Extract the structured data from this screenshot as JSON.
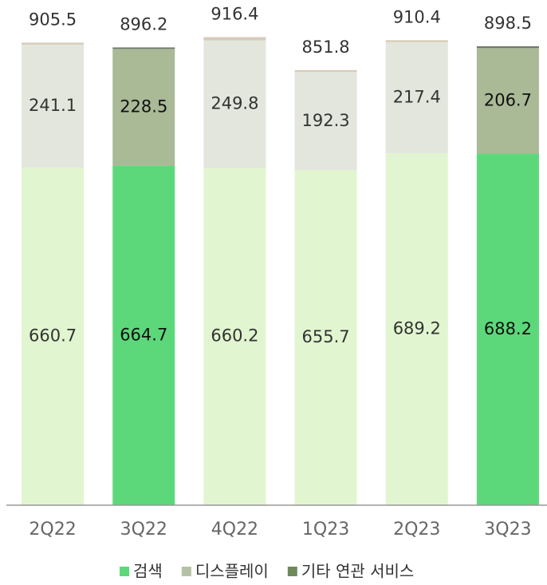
{
  "chart_data": {
    "type": "stacked_bar",
    "categories": [
      "2Q22",
      "3Q22",
      "4Q22",
      "1Q23",
      "2Q23",
      "3Q23"
    ],
    "totals": [
      905.5,
      896.2,
      916.4,
      851.8,
      910.4,
      898.5
    ],
    "series": [
      {
        "name": "검색",
        "color": "#5cd87a",
        "values": [
          660.7,
          664.7,
          660.2,
          655.7,
          689.2,
          688.2
        ],
        "colors": [
          "#e1f6d0",
          "#5cd87a",
          "#e1f6d0",
          "#e1f6d0",
          "#e1f6d0",
          "#5cd87a"
        ]
      },
      {
        "name": "디스플레이",
        "color": "#b5c1a5",
        "values": [
          241.1,
          228.5,
          249.8,
          192.3,
          217.4,
          206.7
        ],
        "colors": [
          "#e3e6dc",
          "#aab996",
          "#e3e6dc",
          "#e3e6dc",
          "#e3e6dc",
          "#aab996"
        ]
      },
      {
        "name": "기타 연관 서비스",
        "color": "#6f8a5a",
        "values": [
          3.7,
          3.0,
          6.4,
          3.8,
          3.8,
          3.6
        ],
        "colors": [
          "#d6cbb8",
          "#6e7a6a",
          "#d6cbb8",
          "#d6cbb8",
          "#d6cbb8",
          "#6e7a6a"
        ]
      }
    ],
    "ylim": [
      0,
      1000
    ],
    "value_label_series": [
      0,
      1
    ]
  }
}
